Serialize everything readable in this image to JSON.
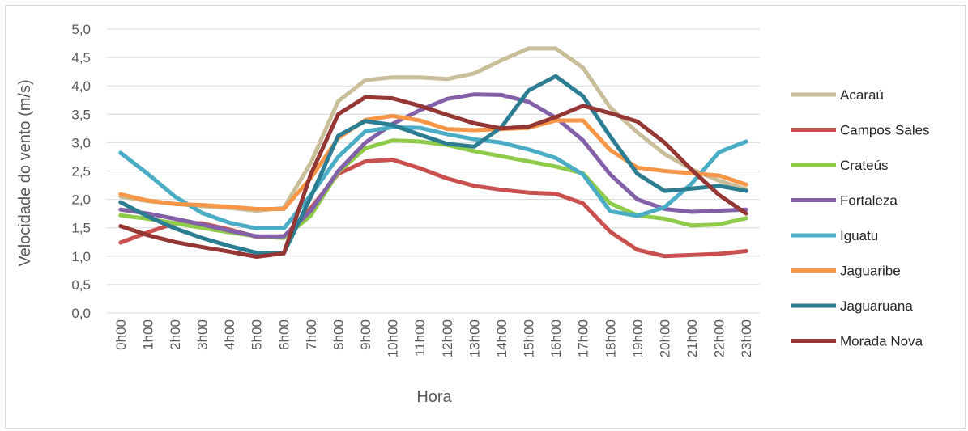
{
  "chart_data": {
    "type": "line",
    "title": "",
    "xlabel": "Hora",
    "ylabel": "Velocidade do vento (m/s)",
    "ylim": [
      0,
      5
    ],
    "y_ticks": [
      "0,0",
      "0,5",
      "1,0",
      "1,5",
      "2,0",
      "2,5",
      "3,0",
      "3,5",
      "4,0",
      "4,5",
      "5,0"
    ],
    "grid": "horizontal",
    "legend_position": "right",
    "categories": [
      "0h00",
      "1h00",
      "2h00",
      "3h00",
      "4h00",
      "5h00",
      "6h00",
      "7h00",
      "8h00",
      "9h00",
      "10h00",
      "11h00",
      "12h00",
      "13h00",
      "14h00",
      "15h00",
      "16h00",
      "17h00",
      "18h00",
      "19h00",
      "20h00",
      "21h00",
      "22h00",
      "23h00"
    ],
    "series": [
      {
        "name": "Acaraú",
        "color": "#c9bd9a",
        "values": [
          2.05,
          1.97,
          1.92,
          1.88,
          1.85,
          1.8,
          1.85,
          2.65,
          3.73,
          4.1,
          4.15,
          4.15,
          4.12,
          4.22,
          4.45,
          4.66,
          4.66,
          4.32,
          3.62,
          3.18,
          2.8,
          2.53,
          2.33,
          2.18
        ]
      },
      {
        "name": "Campos Sales",
        "color": "#c9504f",
        "values": [
          1.24,
          1.42,
          1.58,
          1.58,
          1.47,
          1.34,
          1.33,
          1.85,
          2.45,
          2.67,
          2.7,
          2.55,
          2.37,
          2.24,
          2.17,
          2.12,
          2.1,
          1.93,
          1.43,
          1.11,
          1.0,
          1.02,
          1.04,
          1.09
        ]
      },
      {
        "name": "Crateús",
        "color": "#8fcb4a",
        "values": [
          1.72,
          1.66,
          1.58,
          1.5,
          1.42,
          1.35,
          1.32,
          1.72,
          2.48,
          2.9,
          3.04,
          3.02,
          2.96,
          2.85,
          2.76,
          2.67,
          2.58,
          2.46,
          1.93,
          1.72,
          1.66,
          1.54,
          1.56,
          1.67
        ]
      },
      {
        "name": "Fortaleza",
        "color": "#8460a8",
        "values": [
          1.82,
          1.75,
          1.66,
          1.56,
          1.45,
          1.35,
          1.35,
          1.8,
          2.5,
          3.0,
          3.33,
          3.57,
          3.77,
          3.85,
          3.84,
          3.72,
          3.44,
          3.04,
          2.44,
          2.0,
          1.83,
          1.78,
          1.8,
          1.82
        ]
      },
      {
        "name": "Iguatu",
        "color": "#4bacc6",
        "values": [
          2.82,
          2.45,
          2.05,
          1.76,
          1.59,
          1.49,
          1.49,
          2.08,
          2.75,
          3.2,
          3.27,
          3.26,
          3.15,
          3.06,
          3.0,
          2.88,
          2.73,
          2.44,
          1.79,
          1.71,
          1.86,
          2.28,
          2.83,
          3.02
        ]
      },
      {
        "name": "Jaguaribe",
        "color": "#f79646",
        "values": [
          2.09,
          1.98,
          1.92,
          1.9,
          1.87,
          1.83,
          1.83,
          2.38,
          3.08,
          3.4,
          3.47,
          3.39,
          3.24,
          3.22,
          3.24,
          3.26,
          3.39,
          3.39,
          2.87,
          2.56,
          2.5,
          2.46,
          2.42,
          2.26
        ]
      },
      {
        "name": "Jaguaruana",
        "color": "#2c7d92",
        "values": [
          1.95,
          1.7,
          1.49,
          1.32,
          1.18,
          1.06,
          1.05,
          2.05,
          3.12,
          3.38,
          3.31,
          3.14,
          2.98,
          2.93,
          3.27,
          3.92,
          4.17,
          3.82,
          3.11,
          2.45,
          2.15,
          2.19,
          2.24,
          2.15
        ]
      },
      {
        "name": "Morada Nova",
        "color": "#943634",
        "values": [
          1.53,
          1.37,
          1.25,
          1.16,
          1.08,
          0.99,
          1.05,
          2.45,
          3.5,
          3.8,
          3.78,
          3.65,
          3.49,
          3.34,
          3.25,
          3.28,
          3.45,
          3.65,
          3.52,
          3.37,
          3.0,
          2.52,
          2.08,
          1.75
        ]
      }
    ]
  }
}
